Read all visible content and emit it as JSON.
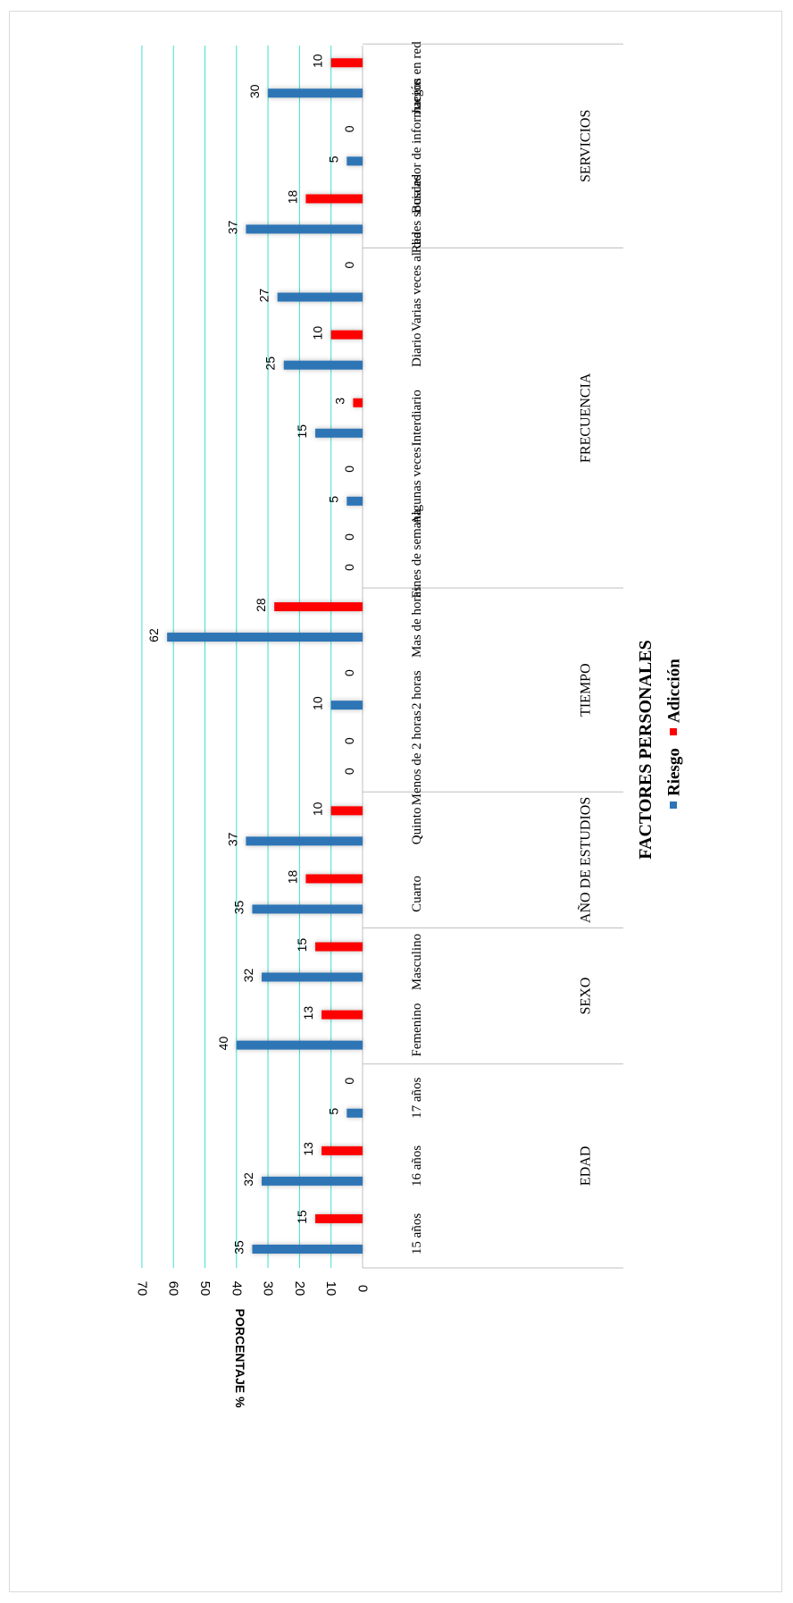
{
  "chart_data": {
    "type": "bar",
    "orientation": "rotated-90-clockwise",
    "title": "FACTORES PERSONALES",
    "ylabel": "PORCENTAJE %",
    "ylim": [
      0,
      70
    ],
    "yticks": [
      0,
      10,
      20,
      30,
      40,
      50,
      60,
      70
    ],
    "grid": true,
    "legend_position": "bottom",
    "groups": [
      {
        "name": "EDAD",
        "categories": [
          "15 años",
          "16 años",
          "17 años"
        ]
      },
      {
        "name": "SEXO",
        "categories": [
          "Femenino",
          "Masculino"
        ]
      },
      {
        "name": "AÑO DE ESTUDIOS",
        "categories": [
          "Cuarto",
          "Quinto"
        ]
      },
      {
        "name": "TIEMPO",
        "categories": [
          "Menos de 2 horas",
          "2 horas",
          "Mas de horas"
        ]
      },
      {
        "name": "FRECUENCIA",
        "categories": [
          "Fines de semana",
          "Algunas veces",
          "Interdiario",
          "Diario",
          "Varias veces al dia"
        ]
      },
      {
        "name": "SERVICIOS",
        "categories": [
          "Redes sociales",
          "Buscador de información",
          "Juegos en red"
        ]
      }
    ],
    "categories": [
      "15 años",
      "16 años",
      "17 años",
      "Femenino",
      "Masculino",
      "Cuarto",
      "Quinto",
      "Menos de 2 horas",
      "2 horas",
      "Mas de horas",
      "Fines de semana",
      "Algunas veces",
      "Interdiario",
      "Diario",
      "Varias veces al dia",
      "Redes sociales",
      "Buscador de información",
      "Juegos en red"
    ],
    "series": [
      {
        "name": "Riesgo",
        "color": "#2e75b6",
        "values": [
          35,
          32,
          5,
          40,
          32,
          35,
          37,
          0,
          10,
          62,
          0,
          5,
          15,
          25,
          27,
          37,
          5,
          30
        ]
      },
      {
        "name": "Adicción",
        "color": "#ff0000",
        "values": [
          15,
          13,
          0,
          13,
          15,
          18,
          10,
          0,
          0,
          28,
          0,
          0,
          3,
          10,
          0,
          18,
          0,
          10
        ]
      }
    ],
    "gridline_color": "#40e0d0",
    "text_color": "#000000",
    "axis_color": "#bfbfbf"
  }
}
